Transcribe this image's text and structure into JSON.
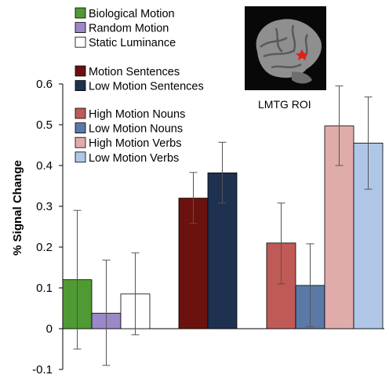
{
  "chart_data": {
    "type": "bar",
    "ylabel": "% Signal Change",
    "ylim": [
      -0.1,
      0.6
    ],
    "yticks": [
      -0.1,
      0,
      0.1,
      0.2,
      0.3,
      0.4,
      0.5,
      0.6
    ],
    "ytick_labels": [
      "-0.1",
      "0",
      "0.1",
      "0.2",
      "0.3",
      "0.4",
      "0.5",
      "0.6"
    ],
    "grid": false,
    "legend_position": "top-left",
    "inset_label": "LMTG ROI",
    "groups": [
      {
        "series": [
          {
            "name": "Biological Motion",
            "value": 0.12,
            "err_low": -0.05,
            "err_high": 0.29,
            "color": "#4f9a32"
          },
          {
            "name": "Random Motion",
            "value": 0.038,
            "err_low": -0.09,
            "err_high": 0.168,
            "color": "#9a88c8"
          },
          {
            "name": "Static Luminance",
            "value": 0.085,
            "err_low": -0.015,
            "err_high": 0.186,
            "color": "#ffffff"
          }
        ]
      },
      {
        "series": [
          {
            "name": "Motion Sentences",
            "value": 0.32,
            "err_low": 0.258,
            "err_high": 0.383,
            "color": "#6b120e"
          },
          {
            "name": "Low Motion Sentences",
            "value": 0.382,
            "err_low": 0.308,
            "err_high": 0.457,
            "color": "#1e3150"
          }
        ]
      },
      {
        "series": [
          {
            "name": "High Motion Nouns",
            "value": 0.21,
            "err_low": 0.11,
            "err_high": 0.308,
            "color": "#bf5a56"
          },
          {
            "name": "Low Motion Nouns",
            "value": 0.106,
            "err_low": 0.005,
            "err_high": 0.208,
            "color": "#5a79a6"
          },
          {
            "name": "High Motion Verbs",
            "value": 0.497,
            "err_low": 0.4,
            "err_high": 0.595,
            "color": "#dfacaa"
          },
          {
            "name": "Low Motion Verbs",
            "value": 0.455,
            "err_low": 0.342,
            "err_high": 0.568,
            "color": "#afc6e6"
          }
        ]
      }
    ]
  }
}
